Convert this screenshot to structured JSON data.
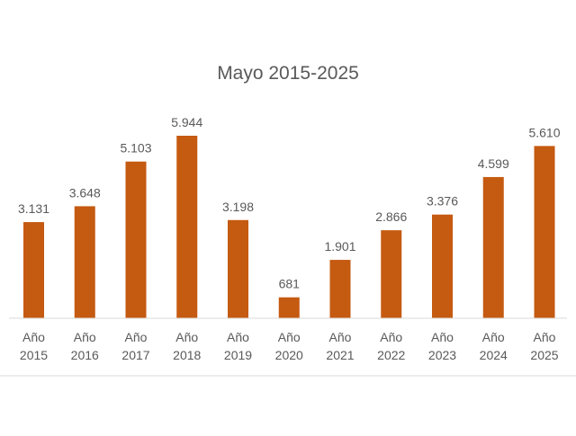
{
  "chart_data": {
    "type": "bar",
    "title": "Mayo 2015-2025",
    "categories": [
      [
        "Año",
        "2015"
      ],
      [
        "Año",
        "2016"
      ],
      [
        "Año",
        "2017"
      ],
      [
        "Año",
        "2018"
      ],
      [
        "Año",
        "2019"
      ],
      [
        "Año",
        "2020"
      ],
      [
        "Año",
        "2021"
      ],
      [
        "Año",
        "2022"
      ],
      [
        "Año",
        "2023"
      ],
      [
        "Año",
        "2024"
      ],
      [
        "Año",
        "2025"
      ]
    ],
    "values": [
      3131,
      3648,
      5103,
      5944,
      3198,
      681,
      1901,
      2866,
      3376,
      4599,
      5610
    ],
    "value_labels": [
      "3.131",
      "3.648",
      "5.103",
      "5.944",
      "3.198",
      "681",
      "1.901",
      "2.866",
      "3.376",
      "4.599",
      "5.610"
    ],
    "xlabel": "",
    "ylabel": "",
    "ylim": [
      0,
      6000
    ],
    "grid": false,
    "legend": "none",
    "colors": {
      "bar": "#C55A11",
      "text": "#595959",
      "axis": "#D9D9D9"
    }
  }
}
